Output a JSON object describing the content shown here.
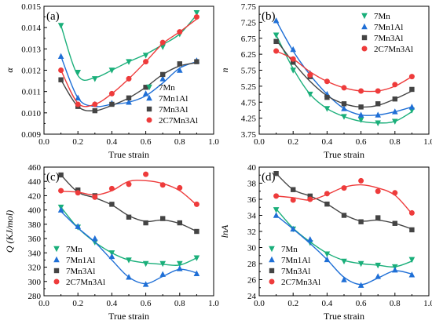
{
  "colors": {
    "7Mn": "#1aaf7a",
    "7Mn1Al": "#1f6fd6",
    "7Mn3Al": "#444444",
    "2C7Mn3Al": "#ee3b3b"
  },
  "chart_data": [
    {
      "panel": "(a)",
      "type": "scatter",
      "fit": "smooth-curve",
      "xlabel": "True strain",
      "ylabel": "α",
      "xlim": [
        0.0,
        1.0
      ],
      "ylim": [
        0.009,
        0.015
      ],
      "xticks": [
        "0.0",
        "0.2",
        "0.4",
        "0.6",
        "0.8",
        "1.0"
      ],
      "yticks": [
        "0.009",
        "0.010",
        "0.011",
        "0.012",
        "0.013",
        "0.014",
        "0.015"
      ],
      "legend": "bottom-right",
      "grid": false,
      "x": [
        0.1,
        0.2,
        0.3,
        0.4,
        0.5,
        0.6,
        0.7,
        0.8,
        0.9
      ],
      "series": [
        {
          "name": "7Mn",
          "marker": "down-triangle",
          "values": [
            0.0141,
            0.0119,
            0.0116,
            0.012,
            0.0124,
            0.0127,
            0.0131,
            0.0137,
            0.0147
          ],
          "curve": [
            0.0141,
            0.01175,
            0.01165,
            0.012,
            0.0124,
            0.01275,
            0.0132,
            0.0137,
            0.0146
          ]
        },
        {
          "name": "7Mn1Al",
          "marker": "up-triangle",
          "values": [
            0.01265,
            0.0107,
            0.0104,
            0.01045,
            0.0105,
            0.0109,
            0.0116,
            0.012,
            0.01245
          ],
          "curve": [
            0.01265,
            0.0107,
            0.0103,
            0.0104,
            0.0105,
            0.0108,
            0.0114,
            0.0121,
            0.0124
          ]
        },
        {
          "name": "7Mn3Al",
          "marker": "square",
          "values": [
            0.01155,
            0.0103,
            0.0101,
            0.0104,
            0.0107,
            0.0112,
            0.0118,
            0.0123,
            0.0124
          ],
          "curve": [
            0.01155,
            0.0103,
            0.0101,
            0.01035,
            0.0107,
            0.0112,
            0.0118,
            0.0122,
            0.01235
          ]
        },
        {
          "name": "2C7Mn3Al",
          "marker": "circle",
          "values": [
            0.012,
            0.0104,
            0.0104,
            0.0109,
            0.0116,
            0.0124,
            0.0133,
            0.0138,
            0.0145
          ],
          "curve": [
            0.012,
            0.01045,
            0.0104,
            0.0109,
            0.0116,
            0.0124,
            0.01325,
            0.0138,
            0.0144
          ]
        }
      ]
    },
    {
      "panel": "(b)",
      "type": "scatter",
      "fit": "smooth-curve",
      "xlabel": "True strain",
      "ylabel": "n",
      "xlim": [
        0.0,
        1.0
      ],
      "ylim": [
        3.75,
        7.75
      ],
      "xticks": [
        "0.0",
        "0.2",
        "0.4",
        "0.6",
        "0.8",
        "1.0"
      ],
      "yticks": [
        "3.75",
        "4.25",
        "4.75",
        "5.25",
        "5.75",
        "6.25",
        "6.75",
        "7.25",
        "7.75"
      ],
      "legend": "top-right",
      "grid": false,
      "x": [
        0.1,
        0.2,
        0.3,
        0.4,
        0.5,
        0.6,
        0.7,
        0.8,
        0.9
      ],
      "series": [
        {
          "name": "7Mn",
          "marker": "down-triangle",
          "values": [
            6.85,
            5.75,
            5.0,
            4.55,
            4.3,
            4.2,
            4.1,
            4.15,
            4.5
          ],
          "curve": [
            6.85,
            5.8,
            5.0,
            4.55,
            4.3,
            4.15,
            4.1,
            4.15,
            4.45
          ]
        },
        {
          "name": "7Mn1Al",
          "marker": "up-triangle",
          "values": [
            7.3,
            6.4,
            5.65,
            5.0,
            4.55,
            4.35,
            4.35,
            4.45,
            4.6
          ],
          "curve": [
            7.3,
            6.35,
            5.6,
            5.0,
            4.55,
            4.35,
            4.35,
            4.45,
            4.6
          ]
        },
        {
          "name": "7Mn3Al",
          "marker": "square",
          "values": [
            6.65,
            6.0,
            5.55,
            4.9,
            4.7,
            4.6,
            4.7,
            4.85,
            5.15
          ],
          "curve": [
            6.7,
            6.0,
            5.4,
            4.95,
            4.7,
            4.6,
            4.65,
            4.85,
            5.1
          ]
        },
        {
          "name": "2C7Mn3Al",
          "marker": "circle",
          "values": [
            6.35,
            6.1,
            5.6,
            5.4,
            5.2,
            5.1,
            5.1,
            5.3,
            5.55
          ],
          "curve": [
            6.35,
            6.1,
            5.7,
            5.4,
            5.2,
            5.1,
            5.1,
            5.25,
            5.55
          ]
        }
      ]
    },
    {
      "panel": "(c)",
      "type": "scatter",
      "fit": "smooth-curve",
      "xlabel": "True strain",
      "ylabel": "Q (KJ/mol)",
      "xlim": [
        0.0,
        1.0
      ],
      "ylim": [
        280,
        460
      ],
      "xticks": [
        "0.0",
        "0.2",
        "0.4",
        "0.6",
        "0.8",
        "1.0"
      ],
      "yticks": [
        "280",
        "300",
        "320",
        "340",
        "360",
        "380",
        "400",
        "420",
        "440",
        "460"
      ],
      "legend": "bottom-left",
      "grid": false,
      "x": [
        0.1,
        0.2,
        0.3,
        0.4,
        0.5,
        0.6,
        0.7,
        0.8,
        0.9
      ],
      "series": [
        {
          "name": "7Mn",
          "marker": "down-triangle",
          "values": [
            404,
            376,
            355,
            340,
            330,
            325,
            325,
            325,
            333
          ],
          "curve": [
            404,
            375,
            355,
            340,
            330,
            326,
            324,
            323,
            333
          ]
        },
        {
          "name": "7Mn1Al",
          "marker": "up-triangle",
          "values": [
            400,
            377,
            360,
            335,
            306,
            296,
            310,
            318,
            311
          ],
          "curve": [
            398,
            375,
            355,
            330,
            306,
            297,
            307,
            317,
            312
          ]
        },
        {
          "name": "7Mn3Al",
          "marker": "square",
          "values": [
            449,
            428,
            420,
            408,
            390,
            382,
            388,
            382,
            370
          ],
          "curve": [
            449,
            425,
            417,
            407,
            392,
            384,
            386,
            381,
            370
          ]
        },
        {
          "name": "2C7Mn3Al",
          "marker": "circle",
          "values": [
            427,
            424,
            418,
            430,
            436,
            450,
            435,
            431,
            408
          ],
          "curve": [
            426,
            425,
            421,
            427,
            440,
            441,
            437,
            427,
            407
          ]
        }
      ]
    },
    {
      "panel": "(d)",
      "type": "scatter",
      "fit": "smooth-curve",
      "xlabel": "True strain",
      "ylabel": "lnA",
      "xlim": [
        0.0,
        1.0
      ],
      "ylim": [
        24,
        40
      ],
      "xticks": [
        "0.0",
        "0.2",
        "0.4",
        "0.6",
        "0.8",
        "1.0"
      ],
      "yticks": [
        "24",
        "26",
        "28",
        "30",
        "32",
        "34",
        "36",
        "38",
        "40"
      ],
      "legend": "bottom-left",
      "grid": false,
      "x": [
        0.1,
        0.2,
        0.3,
        0.4,
        0.5,
        0.6,
        0.7,
        0.8,
        0.9
      ],
      "series": [
        {
          "name": "7Mn",
          "marker": "down-triangle",
          "values": [
            34.7,
            32.3,
            30.6,
            29.2,
            28.3,
            28.0,
            27.8,
            27.6,
            28.5
          ],
          "curve": [
            34.8,
            32.4,
            30.7,
            29.3,
            28.4,
            28.0,
            27.8,
            27.6,
            28.3
          ]
        },
        {
          "name": "7Mn1Al",
          "marker": "up-triangle",
          "values": [
            34.0,
            32.3,
            31.0,
            28.5,
            26.0,
            25.3,
            26.4,
            27.2,
            26.6
          ],
          "curve": [
            34.0,
            32.3,
            30.5,
            28.5,
            26.3,
            25.4,
            26.2,
            27.1,
            26.7
          ]
        },
        {
          "name": "7Mn3Al",
          "marker": "square",
          "values": [
            39.2,
            37.2,
            36.4,
            35.4,
            34.0,
            33.2,
            33.7,
            33.0,
            32.2
          ],
          "curve": [
            39.2,
            37.2,
            36.4,
            35.4,
            34.1,
            33.3,
            33.4,
            33.0,
            32.3
          ]
        },
        {
          "name": "2C7Mn3Al",
          "marker": "circle",
          "values": [
            36.4,
            35.9,
            36.0,
            36.7,
            37.4,
            38.3,
            37.0,
            36.8,
            34.3
          ],
          "curve": [
            36.4,
            36.2,
            35.9,
            36.6,
            37.5,
            37.8,
            37.4,
            36.5,
            34.2
          ]
        }
      ]
    }
  ]
}
